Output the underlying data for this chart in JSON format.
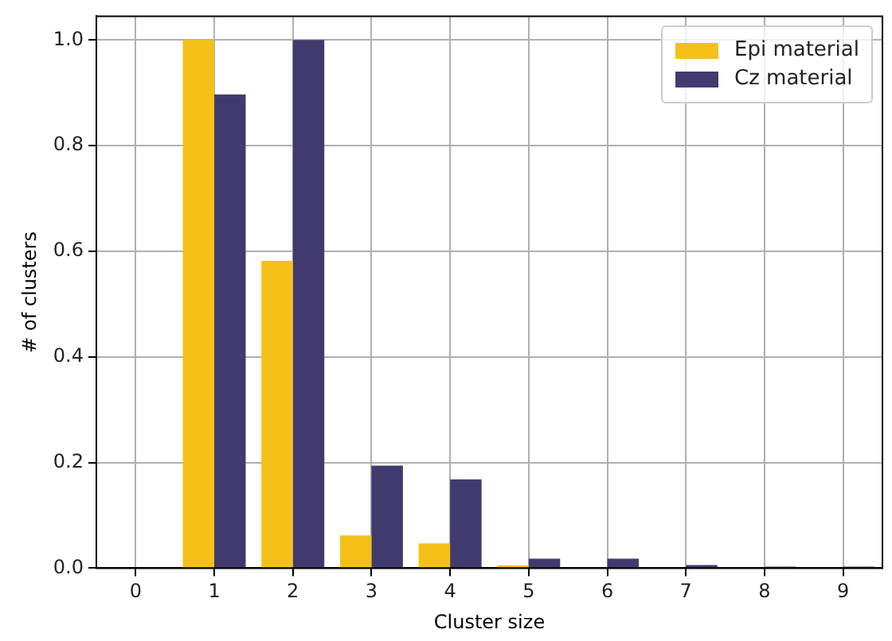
{
  "chart_data": {
    "type": "bar",
    "xlabel": "Cluster size",
    "ylabel": "# of clusters",
    "categories": [
      "0",
      "1",
      "2",
      "3",
      "4",
      "5",
      "6",
      "7",
      "8",
      "9"
    ],
    "series": [
      {
        "name": "Epi material",
        "color": "#f5c018",
        "values": [
          0,
          1.0,
          0.582,
          0.062,
          0.047,
          0.005,
          0,
          0,
          0,
          0
        ]
      },
      {
        "name": "Cz material",
        "color": "#413a6e",
        "values": [
          0,
          0.897,
          1.0,
          0.194,
          0.168,
          0.018,
          0.018,
          0.006,
          0.003,
          0.003
        ]
      }
    ],
    "ylim": [
      0,
      1.045
    ],
    "yticks": [
      {
        "value": 0,
        "label": "0.0"
      },
      {
        "value": 0.2,
        "label": "0.2"
      },
      {
        "value": 0.4,
        "label": "0.4"
      },
      {
        "value": 0.6,
        "label": "0.6"
      },
      {
        "value": 0.8,
        "label": "0.8"
      },
      {
        "value": 1,
        "label": "1.0"
      }
    ],
    "grid": true,
    "legend": "top right"
  }
}
